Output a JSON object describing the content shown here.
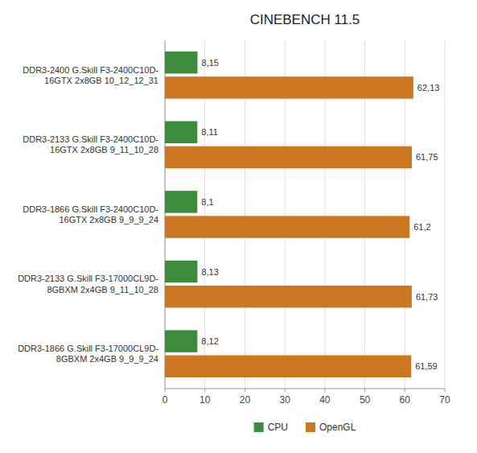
{
  "chart_data": {
    "type": "bar",
    "orientation": "horizontal",
    "title": "CINEBENCH 11.5",
    "categories": [
      "DDR3-2400 G.Skill F3-2400C10D-\n16GTX 2x8GB 10_12_12_31",
      "DDR3-2133 G.Skill F3-2400C10D-\n16GTX 2x8GB 9_11_10_28",
      "DDR3-1866 G.Skill F3-2400C10D-\n16GTX 2x8GB 9_9_9_24",
      "DDR3-2133 G.Skill F3-17000CL9D-\n8GBXM 2x4GB 9_11_10_28",
      "DDR3-1866 G.Skill F3-17000CL9D-\n8GBXM 2x4GB 9_9_9_24"
    ],
    "series": [
      {
        "name": "CPU",
        "color": "#3D8B3D",
        "values": [
          8.15,
          8.11,
          8.1,
          8.13,
          8.12
        ],
        "value_labels": [
          "8,15",
          "8,11",
          "8,1",
          "8,13",
          "8,12"
        ]
      },
      {
        "name": "OpenGL",
        "color": "#CC7722",
        "values": [
          62.13,
          61.75,
          61.2,
          61.73,
          61.59
        ],
        "value_labels": [
          "62,13",
          "61,75",
          "61,2",
          "61,73",
          "61,59"
        ]
      }
    ],
    "xlim": [
      0,
      70
    ],
    "xticks": [
      0,
      10,
      20,
      30,
      40,
      50,
      60,
      70
    ],
    "grid": true,
    "legend": "bottom",
    "data_labels": true
  }
}
